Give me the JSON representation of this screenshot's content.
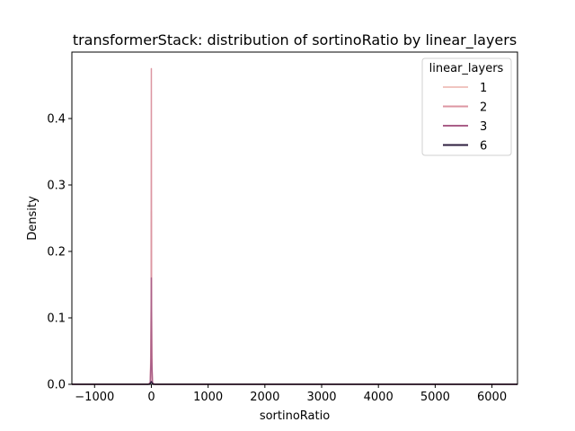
{
  "chart_data": {
    "type": "line",
    "title": "transformerStack: distribution of sortinoRatio by linear_layers",
    "xlabel": "sortinoRatio",
    "ylabel": "Density",
    "xlim": [
      -1400,
      6450
    ],
    "ylim": [
      0,
      0.5
    ],
    "xticks": [
      -1000,
      0,
      1000,
      2000,
      3000,
      4000,
      5000,
      6000
    ],
    "xtick_labels": [
      "−1000",
      "0",
      "1000",
      "2000",
      "3000",
      "4000",
      "5000",
      "6000"
    ],
    "yticks": [
      0.0,
      0.1,
      0.2,
      0.3,
      0.4
    ],
    "ytick_labels": [
      "0.0",
      "0.1",
      "0.2",
      "0.3",
      "0.4"
    ],
    "grid": false,
    "legend": {
      "title": "linear_layers",
      "placement": "top-right"
    },
    "series": [
      {
        "name": "1",
        "color": "#f0c5c0",
        "x": [
          -1400,
          -60,
          -20,
          -5,
          0,
          5,
          20,
          60,
          200,
          6450
        ],
        "y": [
          0,
          0,
          0.002,
          0.05,
          0.26,
          0.05,
          0.002,
          0,
          0,
          0
        ]
      },
      {
        "name": "2",
        "color": "#dc96a2",
        "x": [
          -1400,
          -50,
          -15,
          -4,
          0,
          4,
          15,
          50,
          200,
          6450
        ],
        "y": [
          0,
          0,
          0.003,
          0.12,
          0.475,
          0.12,
          0.003,
          0,
          0,
          0
        ]
      },
      {
        "name": "3",
        "color": "#aa5f88",
        "x": [
          -1400,
          -60,
          -20,
          -5,
          0,
          5,
          20,
          60,
          200,
          6450
        ],
        "y": [
          0,
          0,
          0.002,
          0.04,
          0.16,
          0.04,
          0.002,
          0,
          0,
          0
        ]
      },
      {
        "name": "6",
        "color": "#2d1e3e",
        "x": [
          -1400,
          -30,
          0,
          30,
          200,
          6450
        ],
        "y": [
          0,
          0,
          0.004,
          0,
          0,
          0
        ]
      }
    ]
  }
}
